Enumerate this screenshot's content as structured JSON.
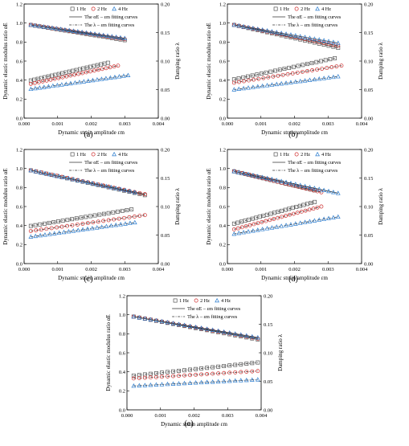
{
  "colors": {
    "axis": "#000000",
    "Hz1": "#555555",
    "Hz2": "#d03030",
    "Hz4": "#2f7fd0",
    "fit": "#333333"
  },
  "legend": {
    "s1": "1 Hz",
    "s2": "2 Hz",
    "s3": "4 Hz",
    "fit_alpha": "The αE – εm fitting curves",
    "fit_lambda": "The λ – εm fitting curves"
  },
  "axes": {
    "xlabel": "Dynamic strain amplitude εm",
    "ylabel_left": "Dynamic elastic modulus ratio αE",
    "ylabel_right": "Damping ratio λ",
    "xticks": [
      "0.000",
      "0.001",
      "0.002",
      "0.003",
      "0.004"
    ],
    "yticks_left": [
      "0.0",
      "0.2",
      "0.4",
      "0.6",
      "0.8",
      "1.0",
      "1.2"
    ],
    "yticks_right": [
      "0.00",
      "0.05",
      "0.10",
      "0.15",
      "0.20"
    ]
  },
  "chart_data": [
    {
      "type": "scatter",
      "caption": "(a)",
      "xlim": [
        0,
        0.004
      ],
      "ylim_left": [
        0,
        1.2
      ],
      "ylim_right": [
        0,
        0.2
      ],
      "series": [
        {
          "name": "1 Hz",
          "axis": "left",
          "x": [
            0.0002,
            0.003
          ],
          "y": [
            0.98,
            0.82
          ]
        },
        {
          "name": "2 Hz",
          "axis": "left",
          "x": [
            0.0002,
            0.003
          ],
          "y": [
            0.98,
            0.83
          ]
        },
        {
          "name": "4 Hz",
          "axis": "left",
          "x": [
            0.0002,
            0.003
          ],
          "y": [
            0.98,
            0.84
          ]
        },
        {
          "name": "1 Hz",
          "axis": "right",
          "x": [
            0.0002,
            0.0025
          ],
          "y": [
            0.066,
            0.097
          ]
        },
        {
          "name": "2 Hz",
          "axis": "right",
          "x": [
            0.0002,
            0.0028
          ],
          "y": [
            0.06,
            0.092
          ]
        },
        {
          "name": "4 Hz",
          "axis": "right",
          "x": [
            0.0002,
            0.0031
          ],
          "y": [
            0.051,
            0.075
          ]
        }
      ]
    },
    {
      "type": "scatter",
      "caption": "(b)",
      "xlim": [
        0,
        0.004
      ],
      "ylim_left": [
        0,
        1.2
      ],
      "ylim_right": [
        0,
        0.2
      ],
      "series": [
        {
          "name": "1 Hz",
          "axis": "left",
          "x": [
            0.0002,
            0.0033
          ],
          "y": [
            0.98,
            0.74
          ]
        },
        {
          "name": "2 Hz",
          "axis": "left",
          "x": [
            0.0002,
            0.0033
          ],
          "y": [
            0.98,
            0.76
          ]
        },
        {
          "name": "4 Hz",
          "axis": "left",
          "x": [
            0.0002,
            0.0033
          ],
          "y": [
            0.98,
            0.79
          ]
        },
        {
          "name": "1 Hz",
          "axis": "right",
          "x": [
            0.0002,
            0.0032
          ],
          "y": [
            0.068,
            0.105
          ]
        },
        {
          "name": "2 Hz",
          "axis": "right",
          "x": [
            0.0002,
            0.0034
          ],
          "y": [
            0.062,
            0.092
          ]
        },
        {
          "name": "4 Hz",
          "axis": "right",
          "x": [
            0.0002,
            0.0033
          ],
          "y": [
            0.05,
            0.073
          ]
        }
      ]
    },
    {
      "type": "scatter",
      "caption": "(c)",
      "xlim": [
        0,
        0.004
      ],
      "ylim_left": [
        0,
        1.2
      ],
      "ylim_right": [
        0,
        0.2
      ],
      "series": [
        {
          "name": "1 Hz",
          "axis": "left",
          "x": [
            0.0002,
            0.0036
          ],
          "y": [
            0.98,
            0.72
          ]
        },
        {
          "name": "2 Hz",
          "axis": "left",
          "x": [
            0.0002,
            0.0036
          ],
          "y": [
            0.98,
            0.73
          ]
        },
        {
          "name": "4 Hz",
          "axis": "left",
          "x": [
            0.0002,
            0.0033
          ],
          "y": [
            0.98,
            0.75
          ]
        },
        {
          "name": "1 Hz",
          "axis": "right",
          "x": [
            0.0002,
            0.0032
          ],
          "y": [
            0.066,
            0.095
          ]
        },
        {
          "name": "2 Hz",
          "axis": "right",
          "x": [
            0.0002,
            0.0036
          ],
          "y": [
            0.057,
            0.085
          ]
        },
        {
          "name": "4 Hz",
          "axis": "right",
          "x": [
            0.0002,
            0.0033
          ],
          "y": [
            0.047,
            0.072
          ]
        }
      ]
    },
    {
      "type": "scatter",
      "caption": "(d)",
      "xlim": [
        0,
        0.004
      ],
      "ylim_left": [
        0,
        1.2
      ],
      "ylim_right": [
        0,
        0.2
      ],
      "series": [
        {
          "name": "1 Hz",
          "axis": "left",
          "x": [
            0.0002,
            0.0026
          ],
          "y": [
            0.97,
            0.77
          ]
        },
        {
          "name": "2 Hz",
          "axis": "left",
          "x": [
            0.0002,
            0.0028
          ],
          "y": [
            0.97,
            0.75
          ]
        },
        {
          "name": "4 Hz",
          "axis": "left",
          "x": [
            0.0002,
            0.0033
          ],
          "y": [
            0.97,
            0.74
          ]
        },
        {
          "name": "1 Hz",
          "axis": "right",
          "x": [
            0.0002,
            0.0026
          ],
          "y": [
            0.07,
            0.108
          ]
        },
        {
          "name": "2 Hz",
          "axis": "right",
          "x": [
            0.0002,
            0.0028
          ],
          "y": [
            0.06,
            0.1
          ]
        },
        {
          "name": "4 Hz",
          "axis": "right",
          "x": [
            0.0002,
            0.0033
          ],
          "y": [
            0.052,
            0.082
          ]
        }
      ]
    },
    {
      "type": "scatter",
      "caption": "(e)",
      "xlim": [
        0,
        0.004
      ],
      "ylim_left": [
        0,
        1.2
      ],
      "ylim_right": [
        0,
        0.2
      ],
      "series": [
        {
          "name": "1 Hz",
          "axis": "left",
          "x": [
            0.0002,
            0.0039
          ],
          "y": [
            0.98,
            0.74
          ]
        },
        {
          "name": "2 Hz",
          "axis": "left",
          "x": [
            0.0002,
            0.0039
          ],
          "y": [
            0.98,
            0.75
          ]
        },
        {
          "name": "4 Hz",
          "axis": "left",
          "x": [
            0.0002,
            0.0039
          ],
          "y": [
            0.98,
            0.76
          ]
        },
        {
          "name": "1 Hz",
          "axis": "right",
          "x": [
            0.0002,
            0.0039
          ],
          "y": [
            0.06,
            0.083
          ]
        },
        {
          "name": "2 Hz",
          "axis": "right",
          "x": [
            0.0002,
            0.0039
          ],
          "y": [
            0.055,
            0.068
          ]
        },
        {
          "name": "4 Hz",
          "axis": "right",
          "x": [
            0.0002,
            0.0039
          ],
          "y": [
            0.042,
            0.053
          ]
        }
      ]
    }
  ]
}
